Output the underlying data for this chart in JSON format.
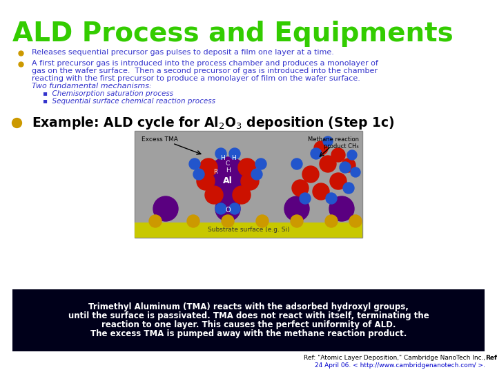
{
  "title": "ALD Process and Equipments",
  "title_color": "#33cc00",
  "title_fontsize": 28,
  "bg_color": "#ffffff",
  "bullet1": "Releases sequential precursor gas pulses to deposit a film one layer at a time.",
  "bullet2_line1": "A first precursor gas is introduced into the process chamber and produces a monolayer of",
  "bullet2_line2": "gas on the wafer surface.  Then a second precursor of gas is introduced into the chamber",
  "bullet2_line3": "reacting with the first precursor to produce a monolayer of film on the wafer surface.",
  "bullet2_italic": "Two fundamental mechanisms:",
  "sub1": "Chemisorption saturation process",
  "sub2": "Sequential surface chemical reaction process",
  "bullet_color": "#3333cc",
  "bullet_dot_color": "#cc9900",
  "box_text_line1": "Trimethyl Aluminum (TMA) reacts with the adsorbed hydroxyl groups,",
  "box_text_line2": "until the surface is passivated. TMA does not react with itself, terminating the",
  "box_text_line3": "reaction to one layer. This causes the perfect uniformity of ALD.",
  "box_text_line4": "The excess TMA is pumped away with the methane reaction product.",
  "box_text_color": "#ffffff",
  "box_bg": "#00001a",
  "ref_bold": "Ref:",
  "ref_normal": " \"Atomic Layer Deposition,\" Cambridge NanoTech Inc.,",
  "ref_line2_normal": "24 April 06. < ",
  "ref_line2_link": "http://www.cambridgenanotech.com/",
  "ref_line2_end": " >."
}
